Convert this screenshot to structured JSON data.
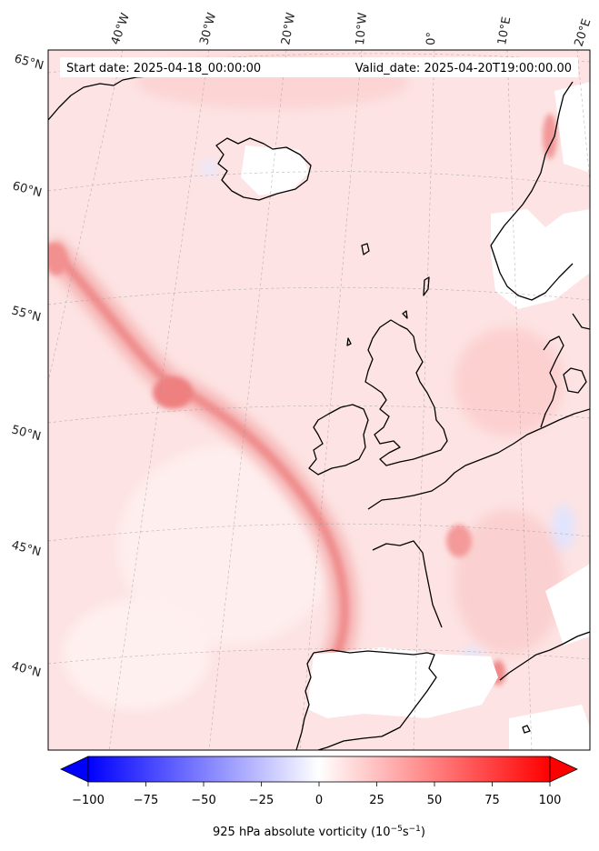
{
  "header": {
    "start_date": "Start date: 2025-04-18_00:00:00",
    "valid_date": "Valid_date: 2025-04-20T19:00:00.00"
  },
  "lon_labels": [
    "40°W",
    "30°W",
    "20°W",
    "10°W",
    "0°",
    "10°E",
    "20°E"
  ],
  "lat_labels": [
    "65°N",
    "60°N",
    "55°N",
    "50°N",
    "45°N",
    "40°N"
  ],
  "colorbar": {
    "ticks": [
      "−100",
      "−75",
      "−50",
      "−25",
      "0",
      "25",
      "50",
      "75",
      "100"
    ],
    "label_main": "925 hPa absolute vorticity (10",
    "label_exp1": "−5",
    "label_mid": "s",
    "label_exp2": "−1",
    "label_end": ")",
    "min": -100,
    "max": 100,
    "colormap": "bwr",
    "extend": "both"
  },
  "colors": {
    "land_outline": "#000000",
    "base_field": "#fde2e2",
    "strong_positive": "#f08a8a",
    "negative": "#e3e8ff"
  }
}
